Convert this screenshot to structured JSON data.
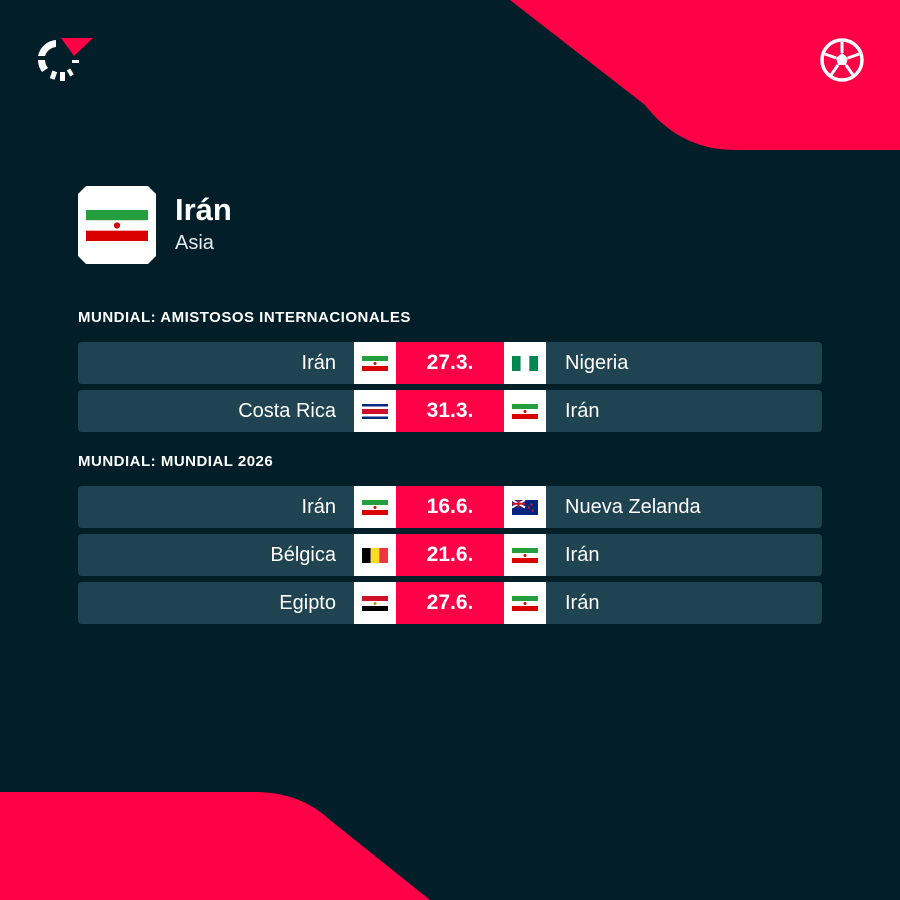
{
  "colors": {
    "background": "#011e29",
    "accent": "#ff0046",
    "row": "#1f4350"
  },
  "header": {
    "logo_icon": "flashscore-logo-icon",
    "sport_icon": "soccer-ball-icon"
  },
  "team": {
    "name": "Irán",
    "region": "Asia",
    "flag": "iran"
  },
  "sections": [
    {
      "title": "MUNDIAL: AMISTOSOS INTERNACIONALES",
      "matches": [
        {
          "home": "Irán",
          "home_flag": "iran",
          "date": "27.3.",
          "away": "Nigeria",
          "away_flag": "nigeria"
        },
        {
          "home": "Costa Rica",
          "home_flag": "costa-rica",
          "date": "31.3.",
          "away": "Irán",
          "away_flag": "iran"
        }
      ]
    },
    {
      "title": "MUNDIAL: MUNDIAL 2026",
      "matches": [
        {
          "home": "Irán",
          "home_flag": "iran",
          "date": "16.6.",
          "away": "Nueva Zelanda",
          "away_flag": "new-zealand"
        },
        {
          "home": "Bélgica",
          "home_flag": "belgium",
          "date": "21.6.",
          "away": "Irán",
          "away_flag": "iran"
        },
        {
          "home": "Egipto",
          "home_flag": "egypt",
          "date": "27.6.",
          "away": "Irán",
          "away_flag": "iran"
        }
      ]
    }
  ]
}
